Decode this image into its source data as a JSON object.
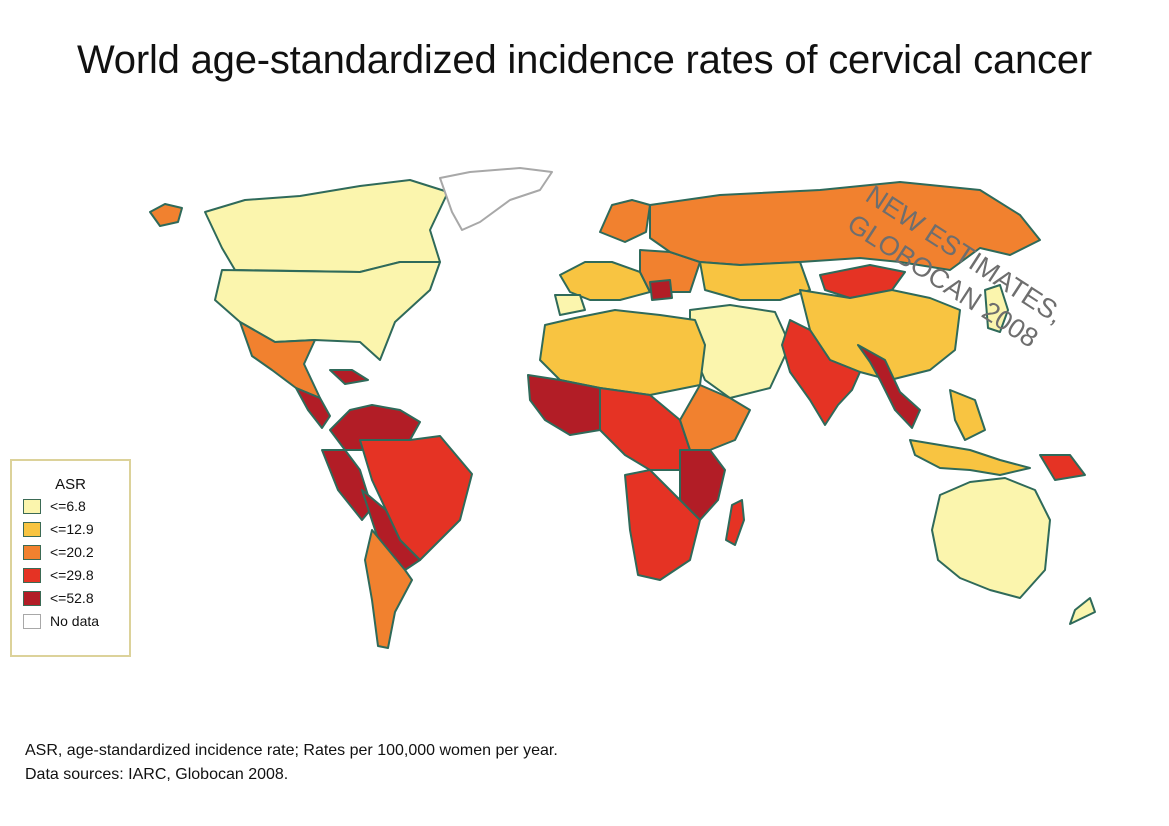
{
  "title": "World age-standardized incidence rates of cervical cancer",
  "watermark": {
    "line1": "NEW ESTIMATES,",
    "line2": "GLOBOCAN 2008"
  },
  "legend": {
    "title": "ASR",
    "items": [
      {
        "label": "<=6.8",
        "color": "#fbf5ad"
      },
      {
        "label": "<=12.9",
        "color": "#f8c441"
      },
      {
        "label": "<=20.2",
        "color": "#f1812f"
      },
      {
        "label": "<=29.8",
        "color": "#e53324"
      },
      {
        "label": "<=52.8",
        "color": "#b21d26"
      },
      {
        "label": "No data",
        "color": "#ffffff"
      }
    ]
  },
  "footnote": {
    "line1": "ASR, age-standardized incidence rate; Rates per 100,000 women per year.",
    "line2": "Data sources: IARC, Globocan 2008."
  },
  "colors": {
    "border": "#2f6a5a",
    "no_data_outline": "#a8a8a8"
  }
}
